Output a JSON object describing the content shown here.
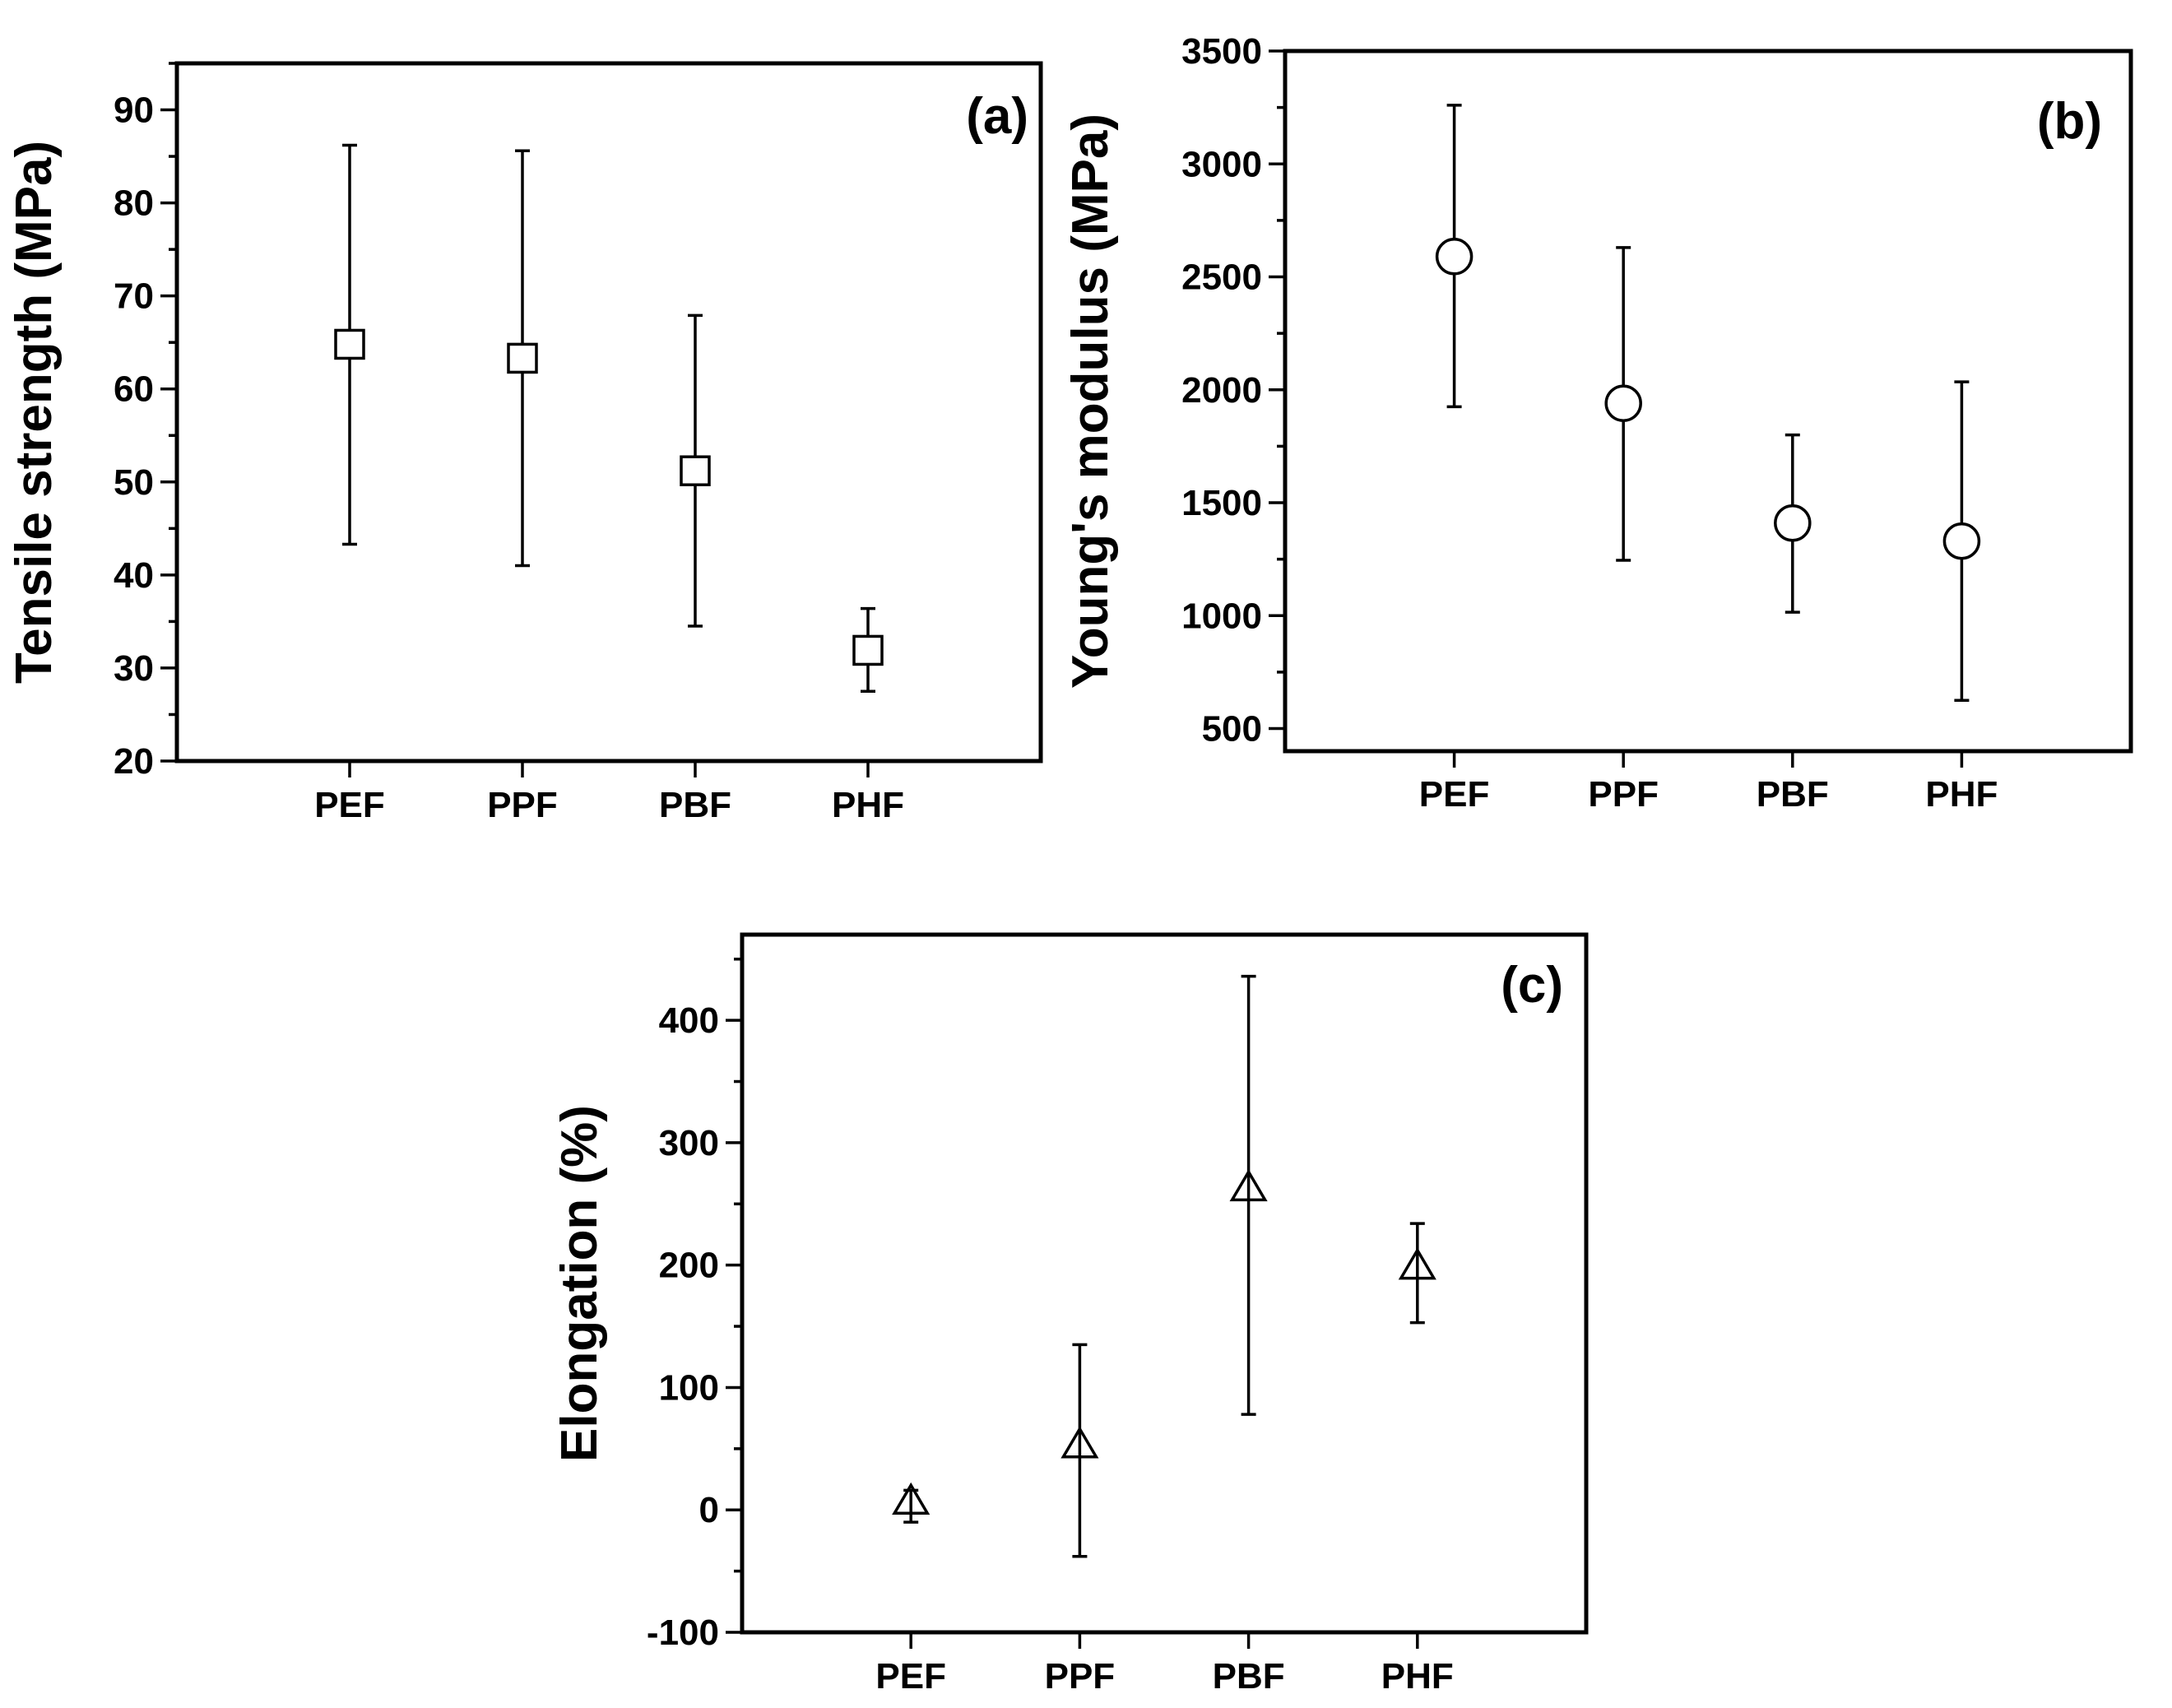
{
  "chart_data": [
    {
      "id": "a",
      "type": "scatter",
      "panel_label": "(a)",
      "ylabel": "Tensile strength (MPa)",
      "xlabel": "",
      "categories": [
        "PEF",
        "PPF",
        "PBF",
        "PHF"
      ],
      "series": [
        {
          "marker": "square",
          "values": [
            64.8,
            63.3,
            51.2,
            31.9
          ],
          "err_low": [
            43.3,
            41.0,
            34.5,
            27.5
          ],
          "err_high": [
            86.2,
            85.6,
            67.9,
            36.4
          ]
        }
      ],
      "ylim": [
        20,
        95
      ],
      "yticks": [
        20,
        30,
        40,
        50,
        60,
        70,
        80,
        90
      ],
      "ytick_labels": [
        "20",
        "30",
        "40",
        "50",
        "60",
        "70",
        "80",
        "90"
      ],
      "yminor_step": 5,
      "grid": false
    },
    {
      "id": "b",
      "type": "scatter",
      "panel_label": "(b)",
      "ylabel": "Young's modulus (MPa)",
      "xlabel": "",
      "categories": [
        "PEF",
        "PPF",
        "PBF",
        "PHF"
      ],
      "series": [
        {
          "marker": "circle",
          "values": [
            2590,
            1940,
            1410,
            1330
          ],
          "err_low": [
            1925,
            1245,
            1015,
            625
          ],
          "err_high": [
            3260,
            2630,
            1800,
            2035
          ]
        }
      ],
      "ylim": [
        400,
        3500
      ],
      "yticks": [
        500,
        1000,
        1500,
        2000,
        2500,
        3000,
        3500
      ],
      "ytick_labels": [
        "500",
        "1000",
        "1500",
        "2000",
        "2500",
        "3000",
        "3500"
      ],
      "yminor_step": 250,
      "grid": false
    },
    {
      "id": "c",
      "type": "scatter",
      "panel_label": "(c)",
      "ylabel": "Elongation (%)",
      "xlabel": "",
      "categories": [
        "PEF",
        "PPF",
        "PBF",
        "PHF"
      ],
      "series": [
        {
          "marker": "triangle",
          "values": [
            6,
            52,
            262,
            198
          ],
          "err_low": [
            -10,
            -38,
            78,
            153
          ],
          "err_high": [
            16,
            135,
            436,
            234
          ]
        }
      ],
      "ylim": [
        -100,
        470
      ],
      "yticks": [
        -100,
        0,
        100,
        200,
        300,
        400
      ],
      "ytick_labels": [
        "-100",
        "0",
        "100",
        "200",
        "300",
        "400"
      ],
      "yminor_step": 50,
      "grid": false
    }
  ]
}
